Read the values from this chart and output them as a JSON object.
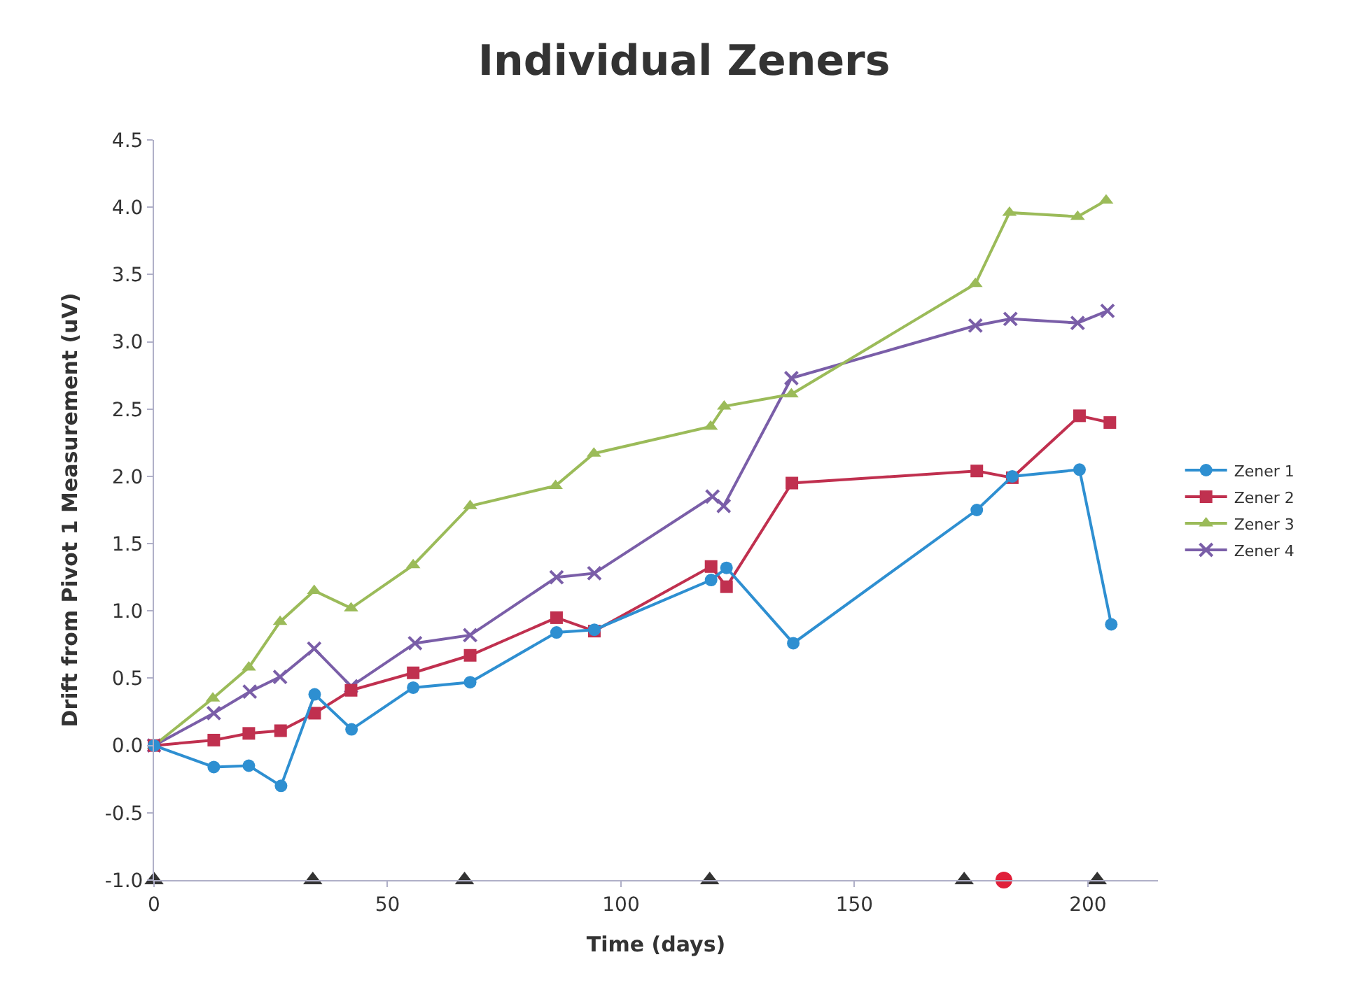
{
  "chart_data": {
    "type": "line",
    "title": "Individual Zeners",
    "xlabel": "Time (days)",
    "ylabel": "Drift from Pivot 1 Measurement (uV)",
    "xlim": [
      0,
      215
    ],
    "xticks": [
      0,
      50,
      100,
      150,
      200
    ],
    "ylim": [
      -1.0,
      4.5
    ],
    "yticks": [
      {
        "value": -1.0,
        "label": "-1.0"
      },
      {
        "value": -0.5,
        "label": "-0.5"
      },
      {
        "value": 0.0,
        "label": "0.0"
      },
      {
        "value": 0.5,
        "label": "0.5"
      },
      {
        "value": 1.0,
        "label": "1.0"
      },
      {
        "value": 1.5,
        "label": "1.5"
      },
      {
        "value": 2.0,
        "label": "2.0"
      },
      {
        "value": 2.5,
        "label": "2.5"
      },
      {
        "value": 3.0,
        "label": "3.0"
      },
      {
        "value": 3.5,
        "label": "3.5"
      },
      {
        "value": 4.0,
        "label": "4.0"
      },
      {
        "value": 4.5,
        "label": "4.5"
      }
    ],
    "grid": false,
    "legend": "right",
    "line_style": "solid",
    "series": [
      {
        "name": "Zener 1",
        "color": "#2e8fd1",
        "marker": "circle",
        "x": [
          0,
          12.8,
          20.3,
          27.2,
          34.4,
          42.3,
          55.5,
          67.7,
          86.2,
          94.3,
          119.3,
          122.6,
          136.9,
          176.2,
          183.8,
          198.2,
          205
        ],
        "values": [
          0,
          -0.16,
          -0.15,
          -0.3,
          0.38,
          0.12,
          0.43,
          0.47,
          0.84,
          0.86,
          1.23,
          1.32,
          0.76,
          1.75,
          2.0,
          2.05,
          0.9
        ]
      },
      {
        "name": "Zener 2",
        "color": "#c0304f",
        "marker": "square",
        "x": [
          0,
          12.8,
          20.3,
          27.1,
          34.4,
          42.2,
          55.5,
          67.7,
          86.2,
          94.3,
          119.3,
          122.6,
          136.6,
          176.2,
          183.8,
          198.2,
          204.7
        ],
        "values": [
          0,
          0.04,
          0.09,
          0.11,
          0.24,
          0.41,
          0.54,
          0.67,
          0.95,
          0.85,
          1.33,
          1.18,
          1.95,
          2.04,
          1.99,
          2.45,
          2.4
        ]
      },
      {
        "name": "Zener 3",
        "color": "#9bbb59",
        "marker": "triangle",
        "x": [
          0,
          12.6,
          20.3,
          27.0,
          34.3,
          42.2,
          55.5,
          67.7,
          86.0,
          94.2,
          119.2,
          122.1,
          136.5,
          175.9,
          183.2,
          197.8,
          203.9
        ],
        "values": [
          0,
          0.35,
          0.58,
          0.92,
          1.15,
          1.02,
          1.34,
          1.78,
          1.93,
          2.17,
          2.37,
          2.52,
          2.61,
          3.43,
          3.96,
          3.93,
          4.05
        ]
      },
      {
        "name": "Zener 4",
        "color": "#7a5ea8",
        "marker": "cross",
        "x": [
          0,
          12.8,
          20.5,
          27.0,
          34.3,
          42.2,
          55.9,
          67.7,
          86.2,
          94.3,
          119.6,
          122.0,
          136.5,
          175.9,
          183.4,
          197.8,
          204.2
        ],
        "values": [
          0,
          0.24,
          0.4,
          0.51,
          0.72,
          0.44,
          0.76,
          0.82,
          1.25,
          1.28,
          1.85,
          1.78,
          2.73,
          3.12,
          3.17,
          3.14,
          3.23
        ]
      },
      {
        "type": "scatter",
        "color": "#333333",
        "marker": "triangle",
        "x": [
          0,
          34,
          66.5,
          119,
          173.5,
          202
        ],
        "values": [
          -1.0,
          -1.0,
          -1.0,
          -1.0,
          -1.0,
          -1.0
        ]
      },
      {
        "type": "scatter",
        "color": "#e0203a",
        "marker": "circle",
        "x": [
          182
        ],
        "values": [
          -1.0
        ]
      }
    ]
  }
}
